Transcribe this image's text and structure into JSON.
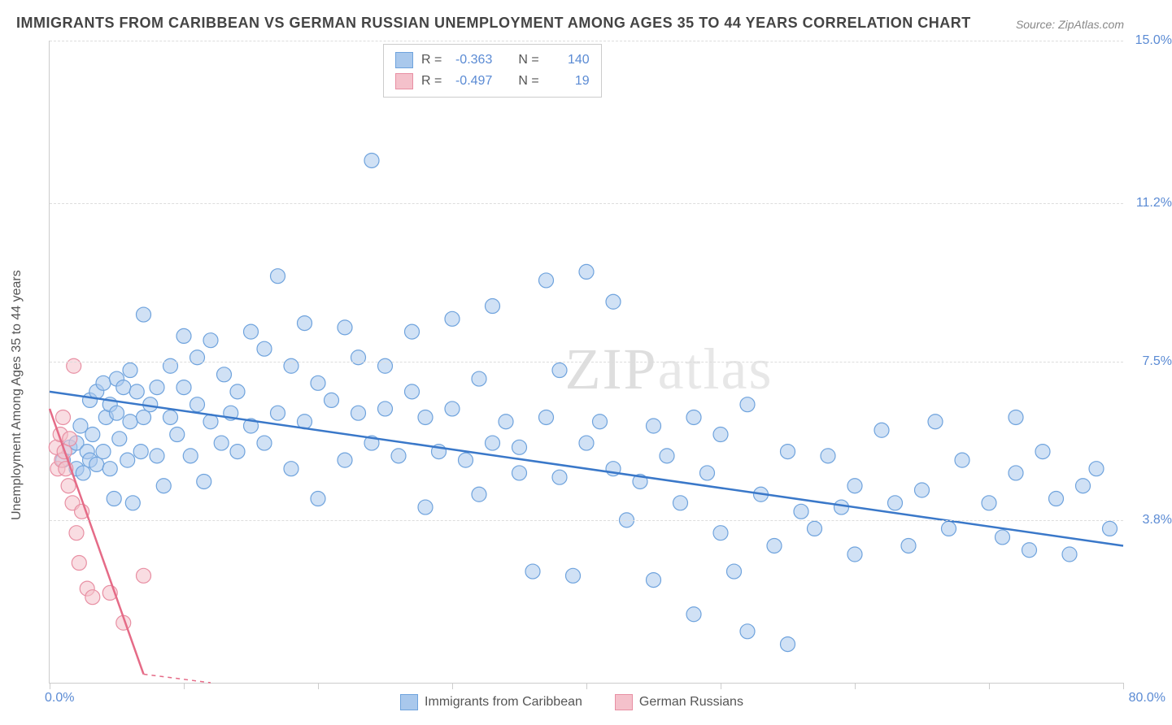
{
  "title": "IMMIGRANTS FROM CARIBBEAN VS GERMAN RUSSIAN UNEMPLOYMENT AMONG AGES 35 TO 44 YEARS CORRELATION CHART",
  "source": "Source: ZipAtlas.com",
  "watermark_a": "ZIP",
  "watermark_b": "atlas",
  "y_axis_label": "Unemployment Among Ages 35 to 44 years",
  "chart": {
    "type": "scatter",
    "background_color": "#ffffff",
    "grid_color": "#dddddd",
    "axis_color": "#cccccc",
    "xlim": [
      0,
      80
    ],
    "ylim": [
      0,
      15
    ],
    "x_ticks": [
      0,
      10,
      20,
      30,
      40,
      50,
      60,
      70,
      80
    ],
    "y_gridlines": [
      3.8,
      7.5,
      11.2,
      15.0
    ],
    "y_tick_labels": [
      "3.8%",
      "7.5%",
      "11.2%",
      "15.0%"
    ],
    "x_min_label": "0.0%",
    "x_max_label": "80.0%",
    "marker_radius": 9,
    "marker_stroke_width": 1.2,
    "trend_line_width": 2.5
  },
  "series": [
    {
      "name": "Immigrants from Caribbean",
      "fill_color": "#a9c8ec",
      "stroke_color": "#6fa3dd",
      "fill_opacity": 0.55,
      "R": "-0.363",
      "N": "140",
      "trend": {
        "x1": 0,
        "y1": 6.8,
        "x2": 80,
        "y2": 3.2,
        "color": "#3a78c9"
      },
      "points": [
        [
          1,
          5.2
        ],
        [
          1.5,
          5.5
        ],
        [
          2,
          5.0
        ],
        [
          2,
          5.6
        ],
        [
          2.3,
          6.0
        ],
        [
          2.5,
          4.9
        ],
        [
          2.8,
          5.4
        ],
        [
          3,
          5.2
        ],
        [
          3,
          6.6
        ],
        [
          3.2,
          5.8
        ],
        [
          3.5,
          5.1
        ],
        [
          3.5,
          6.8
        ],
        [
          4,
          5.4
        ],
        [
          4,
          7.0
        ],
        [
          4.2,
          6.2
        ],
        [
          4.5,
          5.0
        ],
        [
          4.5,
          6.5
        ],
        [
          4.8,
          4.3
        ],
        [
          5,
          6.3
        ],
        [
          5,
          7.1
        ],
        [
          5.2,
          5.7
        ],
        [
          5.5,
          6.9
        ],
        [
          5.8,
          5.2
        ],
        [
          6,
          6.1
        ],
        [
          6,
          7.3
        ],
        [
          6.2,
          4.2
        ],
        [
          6.5,
          6.8
        ],
        [
          6.8,
          5.4
        ],
        [
          7,
          6.2
        ],
        [
          7,
          8.6
        ],
        [
          7.5,
          6.5
        ],
        [
          8,
          5.3
        ],
        [
          8,
          6.9
        ],
        [
          8.5,
          4.6
        ],
        [
          9,
          6.2
        ],
        [
          9,
          7.4
        ],
        [
          9.5,
          5.8
        ],
        [
          10,
          6.9
        ],
        [
          10,
          8.1
        ],
        [
          10.5,
          5.3
        ],
        [
          11,
          6.5
        ],
        [
          11,
          7.6
        ],
        [
          11.5,
          4.7
        ],
        [
          12,
          6.1
        ],
        [
          12,
          8.0
        ],
        [
          12.8,
          5.6
        ],
        [
          13,
          7.2
        ],
        [
          13.5,
          6.3
        ],
        [
          14,
          5.4
        ],
        [
          14,
          6.8
        ],
        [
          15,
          6.0
        ],
        [
          15,
          8.2
        ],
        [
          16,
          5.6
        ],
        [
          16,
          7.8
        ],
        [
          17,
          6.3
        ],
        [
          17,
          9.5
        ],
        [
          18,
          5.0
        ],
        [
          18,
          7.4
        ],
        [
          19,
          6.1
        ],
        [
          19,
          8.4
        ],
        [
          20,
          4.3
        ],
        [
          20,
          7.0
        ],
        [
          21,
          6.6
        ],
        [
          22,
          5.2
        ],
        [
          22,
          8.3
        ],
        [
          23,
          6.3
        ],
        [
          23,
          7.6
        ],
        [
          24,
          5.6
        ],
        [
          24,
          12.2
        ],
        [
          25,
          6.4
        ],
        [
          25,
          7.4
        ],
        [
          26,
          5.3
        ],
        [
          27,
          6.8
        ],
        [
          27,
          8.2
        ],
        [
          28,
          4.1
        ],
        [
          28,
          6.2
        ],
        [
          29,
          5.4
        ],
        [
          30,
          6.4
        ],
        [
          30,
          8.5
        ],
        [
          31,
          5.2
        ],
        [
          32,
          4.4
        ],
        [
          32,
          7.1
        ],
        [
          33,
          5.6
        ],
        [
          33,
          8.8
        ],
        [
          34,
          6.1
        ],
        [
          35,
          4.9
        ],
        [
          35,
          5.5
        ],
        [
          36,
          2.6
        ],
        [
          37,
          6.2
        ],
        [
          37,
          9.4
        ],
        [
          38,
          4.8
        ],
        [
          38,
          7.3
        ],
        [
          39,
          2.5
        ],
        [
          40,
          5.6
        ],
        [
          40,
          9.6
        ],
        [
          41,
          6.1
        ],
        [
          42,
          5.0
        ],
        [
          42,
          8.9
        ],
        [
          43,
          3.8
        ],
        [
          44,
          4.7
        ],
        [
          45,
          6.0
        ],
        [
          45,
          2.4
        ],
        [
          46,
          5.3
        ],
        [
          47,
          4.2
        ],
        [
          48,
          6.2
        ],
        [
          48,
          1.6
        ],
        [
          49,
          4.9
        ],
        [
          50,
          3.5
        ],
        [
          50,
          5.8
        ],
        [
          51,
          2.6
        ],
        [
          52,
          6.5
        ],
        [
          52,
          1.2
        ],
        [
          53,
          4.4
        ],
        [
          54,
          3.2
        ],
        [
          55,
          5.4
        ],
        [
          55,
          0.9
        ],
        [
          56,
          4.0
        ],
        [
          57,
          3.6
        ],
        [
          58,
          5.3
        ],
        [
          59,
          4.1
        ],
        [
          60,
          3.0
        ],
        [
          60,
          4.6
        ],
        [
          62,
          5.9
        ],
        [
          63,
          4.2
        ],
        [
          64,
          3.2
        ],
        [
          65,
          4.5
        ],
        [
          66,
          6.1
        ],
        [
          67,
          3.6
        ],
        [
          68,
          5.2
        ],
        [
          70,
          4.2
        ],
        [
          71,
          3.4
        ],
        [
          72,
          4.9
        ],
        [
          73,
          3.1
        ],
        [
          74,
          5.4
        ],
        [
          75,
          4.3
        ],
        [
          76,
          3.0
        ],
        [
          77,
          4.6
        ],
        [
          78,
          5.0
        ],
        [
          79,
          3.6
        ],
        [
          72,
          6.2
        ]
      ]
    },
    {
      "name": "German Russians",
      "fill_color": "#f4c1cb",
      "stroke_color": "#e88fa3",
      "fill_opacity": 0.55,
      "R": "-0.497",
      "N": "19",
      "trend": {
        "x1": 0,
        "y1": 6.4,
        "x2": 7,
        "y2": 0.2,
        "color": "#e56b87",
        "dash_extend_x": 12
      },
      "points": [
        [
          0.5,
          5.5
        ],
        [
          0.6,
          5.0
        ],
        [
          0.8,
          5.8
        ],
        [
          0.9,
          5.2
        ],
        [
          1.0,
          6.2
        ],
        [
          1.1,
          5.4
        ],
        [
          1.2,
          5.0
        ],
        [
          1.4,
          4.6
        ],
        [
          1.5,
          5.7
        ],
        [
          1.7,
          4.2
        ],
        [
          1.8,
          7.4
        ],
        [
          2.0,
          3.5
        ],
        [
          2.2,
          2.8
        ],
        [
          2.4,
          4.0
        ],
        [
          2.8,
          2.2
        ],
        [
          3.2,
          2.0
        ],
        [
          4.5,
          2.1
        ],
        [
          5.5,
          1.4
        ],
        [
          7.0,
          2.5
        ]
      ]
    }
  ],
  "legend": {
    "top_box": {
      "r_label": "R =",
      "n_label": "N ="
    }
  }
}
